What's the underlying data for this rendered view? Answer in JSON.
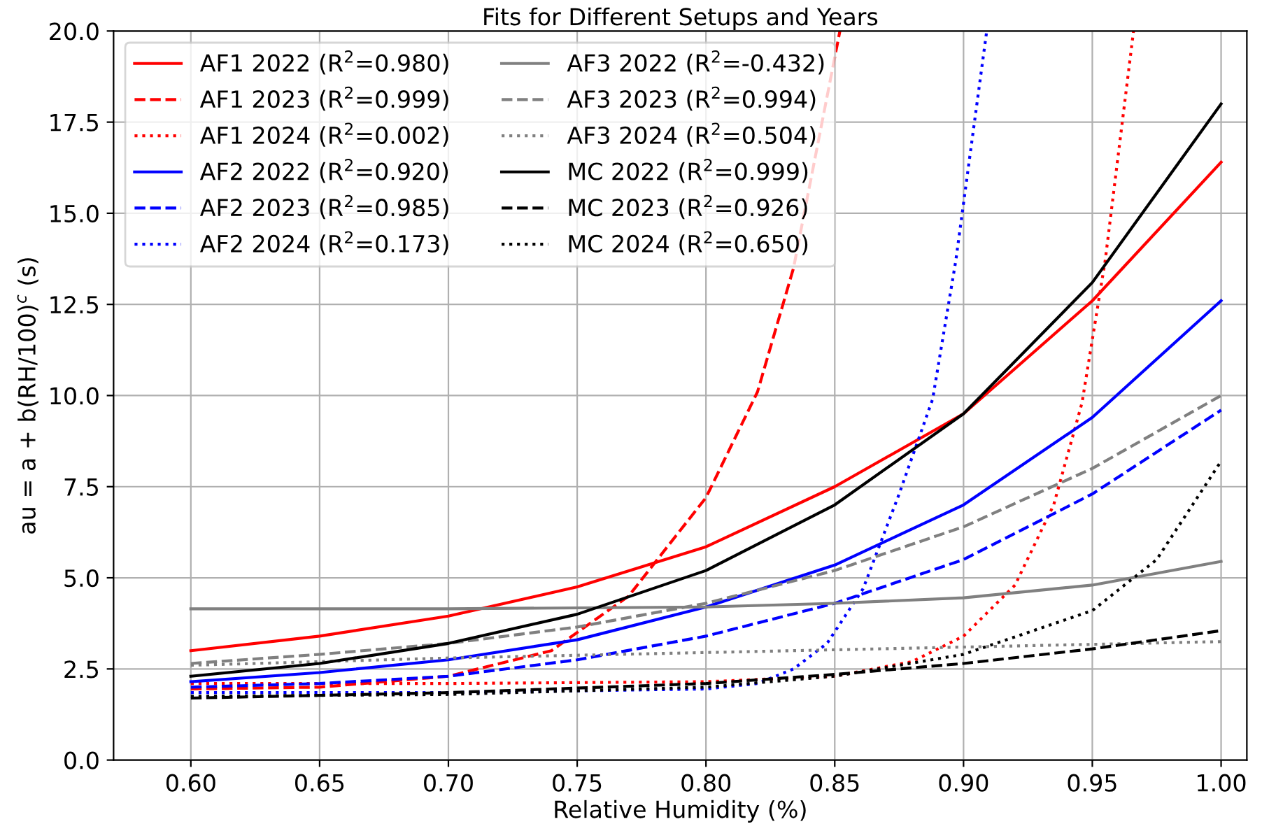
{
  "chart_data": {
    "type": "line",
    "title": "Fits for Different Setups and Years",
    "xlabel": "Relative Humidity (%)",
    "ylabel": "au = a + b(RH/100)$^{c}$ (s)",
    "xlim": [
      0.57,
      1.01
    ],
    "xticks": [
      {
        "value": 0.6,
        "label": "0.60"
      },
      {
        "value": 0.65,
        "label": "0.65"
      },
      {
        "value": 0.7,
        "label": "0.70"
      },
      {
        "value": 0.75,
        "label": "0.75"
      },
      {
        "value": 0.8,
        "label": "0.80"
      },
      {
        "value": 0.85,
        "label": "0.85"
      },
      {
        "value": 0.9,
        "label": "0.90"
      },
      {
        "value": 0.95,
        "label": "0.95"
      },
      {
        "value": 1.0,
        "label": "1.00"
      }
    ],
    "ylim": [
      0,
      20
    ],
    "yticks": [
      {
        "value": 0,
        "label": "0.0"
      },
      {
        "value": 2.5,
        "label": "2.5"
      },
      {
        "value": 5,
        "label": "5.0"
      },
      {
        "value": 7.5,
        "label": "7.5"
      },
      {
        "value": 10,
        "label": "10.0"
      },
      {
        "value": 12.5,
        "label": "12.5"
      },
      {
        "value": 15,
        "label": "15.0"
      },
      {
        "value": 17.5,
        "label": "17.5"
      },
      {
        "value": 20,
        "label": "20.0"
      }
    ],
    "grid": true,
    "legend": "top left",
    "marker": "none",
    "series": [
      {
        "name": "AF1 2022 (R$^{2}$=0.980)",
        "color": "#ff0000",
        "line_style": "solid",
        "x": [
          0.6,
          0.65,
          0.7,
          0.75,
          0.8,
          0.85,
          0.9,
          0.95,
          1.0
        ],
        "values": [
          3.0,
          3.4,
          3.95,
          4.75,
          5.85,
          7.5,
          9.5,
          12.6,
          16.4
        ]
      },
      {
        "name": "AF1 2023 (R$^{2}$=0.999)",
        "color": "#ff0000",
        "line_style": "dashed",
        "x": [
          0.6,
          0.65,
          0.7,
          0.74,
          0.77,
          0.79,
          0.8,
          0.82,
          0.834,
          0.852
        ],
        "values": [
          1.95,
          2.0,
          2.3,
          3.0,
          4.5,
          6.3,
          7.2,
          10.1,
          13.5,
          20.0
        ]
      },
      {
        "name": "AF1 2024 (R$^{2}$=0.002)",
        "color": "#ff0000",
        "line_style": "dotted",
        "x": [
          0.6,
          0.7,
          0.8,
          0.85,
          0.88,
          0.9,
          0.92,
          0.935,
          0.946,
          0.955,
          0.966
        ],
        "values": [
          2.1,
          2.1,
          2.15,
          2.3,
          2.7,
          3.4,
          4.8,
          7.0,
          9.8,
          13.7,
          20.0
        ]
      },
      {
        "name": "AF2 2022 (R$^{2}$=0.920)",
        "color": "#0000ff",
        "line_style": "solid",
        "x": [
          0.6,
          0.65,
          0.7,
          0.75,
          0.8,
          0.85,
          0.9,
          0.95,
          1.0
        ],
        "values": [
          2.15,
          2.4,
          2.75,
          3.3,
          4.2,
          5.35,
          7.0,
          9.4,
          12.6
        ]
      },
      {
        "name": "AF2 2023 (R$^{2}$=0.985)",
        "color": "#0000ff",
        "line_style": "dashed",
        "x": [
          0.6,
          0.65,
          0.7,
          0.75,
          0.8,
          0.85,
          0.9,
          0.95,
          1.0
        ],
        "values": [
          2.0,
          2.1,
          2.3,
          2.75,
          3.4,
          4.3,
          5.5,
          7.3,
          9.6
        ]
      },
      {
        "name": "AF2 2024 (R$^{2}$=0.173)",
        "color": "#0000ff",
        "line_style": "dotted",
        "x": [
          0.6,
          0.7,
          0.8,
          0.82,
          0.834,
          0.847,
          0.861,
          0.875,
          0.888,
          0.897,
          0.909
        ],
        "values": [
          1.85,
          1.85,
          1.95,
          2.1,
          2.5,
          3.2,
          4.7,
          7.3,
          9.9,
          13.7,
          20.0
        ]
      },
      {
        "name": "AF3 2022 (R$^{2}$=-0.432)",
        "color": "#808080",
        "line_style": "solid",
        "x": [
          0.6,
          0.7,
          0.8,
          0.85,
          0.9,
          0.95,
          1.0
        ],
        "values": [
          4.15,
          4.15,
          4.2,
          4.3,
          4.45,
          4.8,
          5.45
        ]
      },
      {
        "name": "AF3 2023 (R$^{2}$=0.994)",
        "color": "#808080",
        "line_style": "dashed",
        "x": [
          0.6,
          0.65,
          0.7,
          0.75,
          0.8,
          0.85,
          0.9,
          0.95,
          1.0
        ],
        "values": [
          2.65,
          2.9,
          3.2,
          3.65,
          4.3,
          5.2,
          6.4,
          8.0,
          10.0
        ]
      },
      {
        "name": "AF3 2024 (R$^{2}$=0.504)",
        "color": "#808080",
        "line_style": "dotted",
        "x": [
          0.6,
          0.7,
          0.8,
          0.9,
          1.0
        ],
        "values": [
          2.6,
          2.8,
          2.95,
          3.1,
          3.25
        ]
      },
      {
        "name": "MC 2022 (R$^{2}$=0.999)",
        "color": "#000000",
        "line_style": "solid",
        "x": [
          0.6,
          0.65,
          0.7,
          0.75,
          0.8,
          0.85,
          0.9,
          0.95,
          1.0
        ],
        "values": [
          2.3,
          2.65,
          3.2,
          4.0,
          5.2,
          7.0,
          9.5,
          13.1,
          18.0
        ]
      },
      {
        "name": "MC 2023 (R$^{2}$=0.926)",
        "color": "#000000",
        "line_style": "dashed",
        "x": [
          0.6,
          0.7,
          0.8,
          0.85,
          0.9,
          0.95,
          1.0
        ],
        "values": [
          1.7,
          1.85,
          2.1,
          2.35,
          2.65,
          3.05,
          3.55
        ]
      },
      {
        "name": "MC 2024 (R$^{2}$=0.650)",
        "color": "#000000",
        "line_style": "dotted",
        "x": [
          0.6,
          0.7,
          0.8,
          0.85,
          0.9,
          0.95,
          0.975,
          1.0
        ],
        "values": [
          1.75,
          1.8,
          2.0,
          2.3,
          2.9,
          4.1,
          5.5,
          8.2
        ]
      }
    ]
  }
}
